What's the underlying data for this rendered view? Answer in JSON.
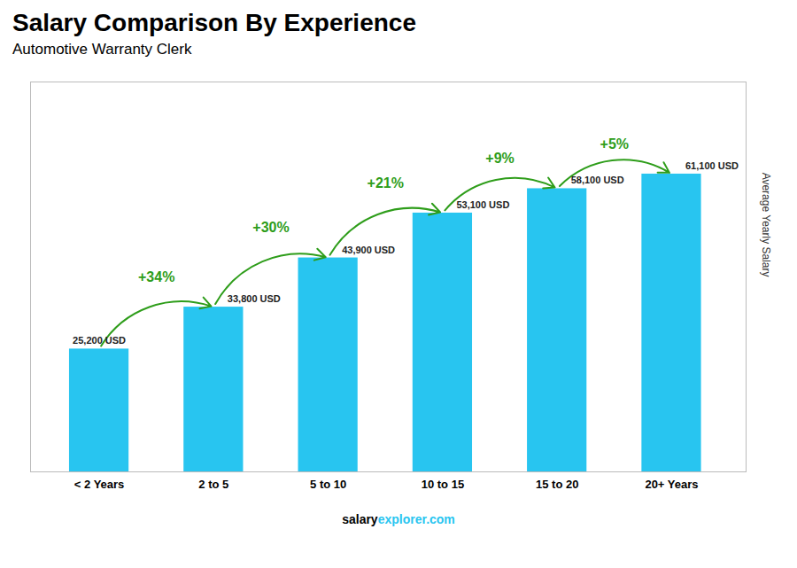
{
  "chart_data": {
    "type": "bar",
    "title": "Salary Comparison By Experience",
    "subtitle": "Automotive Warranty Clerk",
    "ylabel": "Average Yearly Salary",
    "categories": [
      "< 2 Years",
      "2 to 5",
      "5 to 10",
      "10 to 15",
      "15 to 20",
      "20+ Years"
    ],
    "values": [
      25200,
      33800,
      43900,
      53100,
      58100,
      61100
    ],
    "value_labels": [
      "25,200 USD",
      "33,800 USD",
      "43,900 USD",
      "53,100 USD",
      "58,100 USD",
      "61,100 USD"
    ],
    "data_labels": true,
    "color": "#28C5F0",
    "pct_changes": {
      "labels": [
        "+34%",
        "+30%",
        "+21%",
        "+9%",
        "+5%"
      ],
      "color": "#2E9D1A"
    },
    "footer": [
      "salary",
      "explorer.com"
    ],
    "ylim": [
      0,
      80000
    ],
    "grid": false,
    "tick_labels": "x"
  }
}
